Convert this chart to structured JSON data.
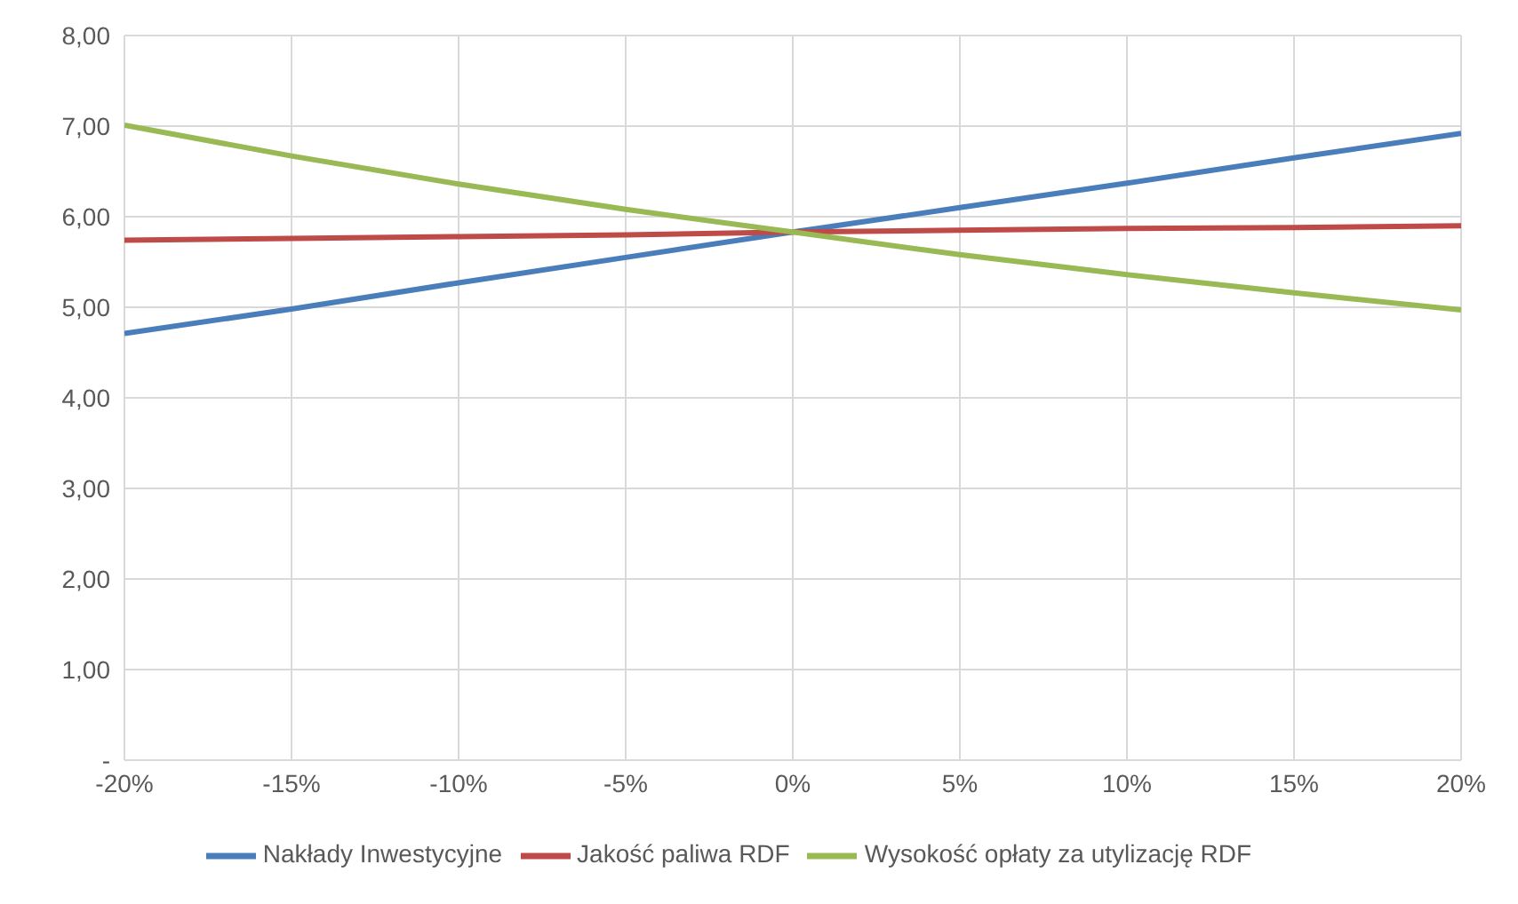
{
  "chart_data": {
    "type": "line",
    "categories": [
      "-20%",
      "-15%",
      "-10%",
      "-5%",
      "0%",
      "5%",
      "10%",
      "15%",
      "20%"
    ],
    "series": [
      {
        "name": "Nakłady Inwestycyjne",
        "color": "#4a7ebb",
        "values": [
          4.71,
          4.98,
          5.27,
          5.55,
          5.83,
          6.1,
          6.37,
          6.65,
          6.92
        ]
      },
      {
        "name": "Jakość paliwa RDF",
        "color": "#be4b48",
        "values": [
          5.74,
          5.76,
          5.78,
          5.8,
          5.83,
          5.85,
          5.87,
          5.88,
          5.9
        ]
      },
      {
        "name": "Wysokość opłaty za utylizację RDF",
        "color": "#98b954",
        "values": [
          7.01,
          6.67,
          6.36,
          6.08,
          5.83,
          5.58,
          5.36,
          5.16,
          4.97
        ]
      }
    ],
    "ylim": [
      0,
      8
    ],
    "yticks": [
      {
        "value": 0,
        "label": "-"
      },
      {
        "value": 1,
        "label": "1,00"
      },
      {
        "value": 2,
        "label": "2,00"
      },
      {
        "value": 3,
        "label": "3,00"
      },
      {
        "value": 4,
        "label": "4,00"
      },
      {
        "value": 5,
        "label": "5,00"
      },
      {
        "value": 6,
        "label": "6,00"
      },
      {
        "value": 7,
        "label": "7,00"
      },
      {
        "value": 8,
        "label": "8,00"
      }
    ],
    "grid": true,
    "legend": "bottom",
    "marker": "none",
    "line_style": "solid"
  }
}
